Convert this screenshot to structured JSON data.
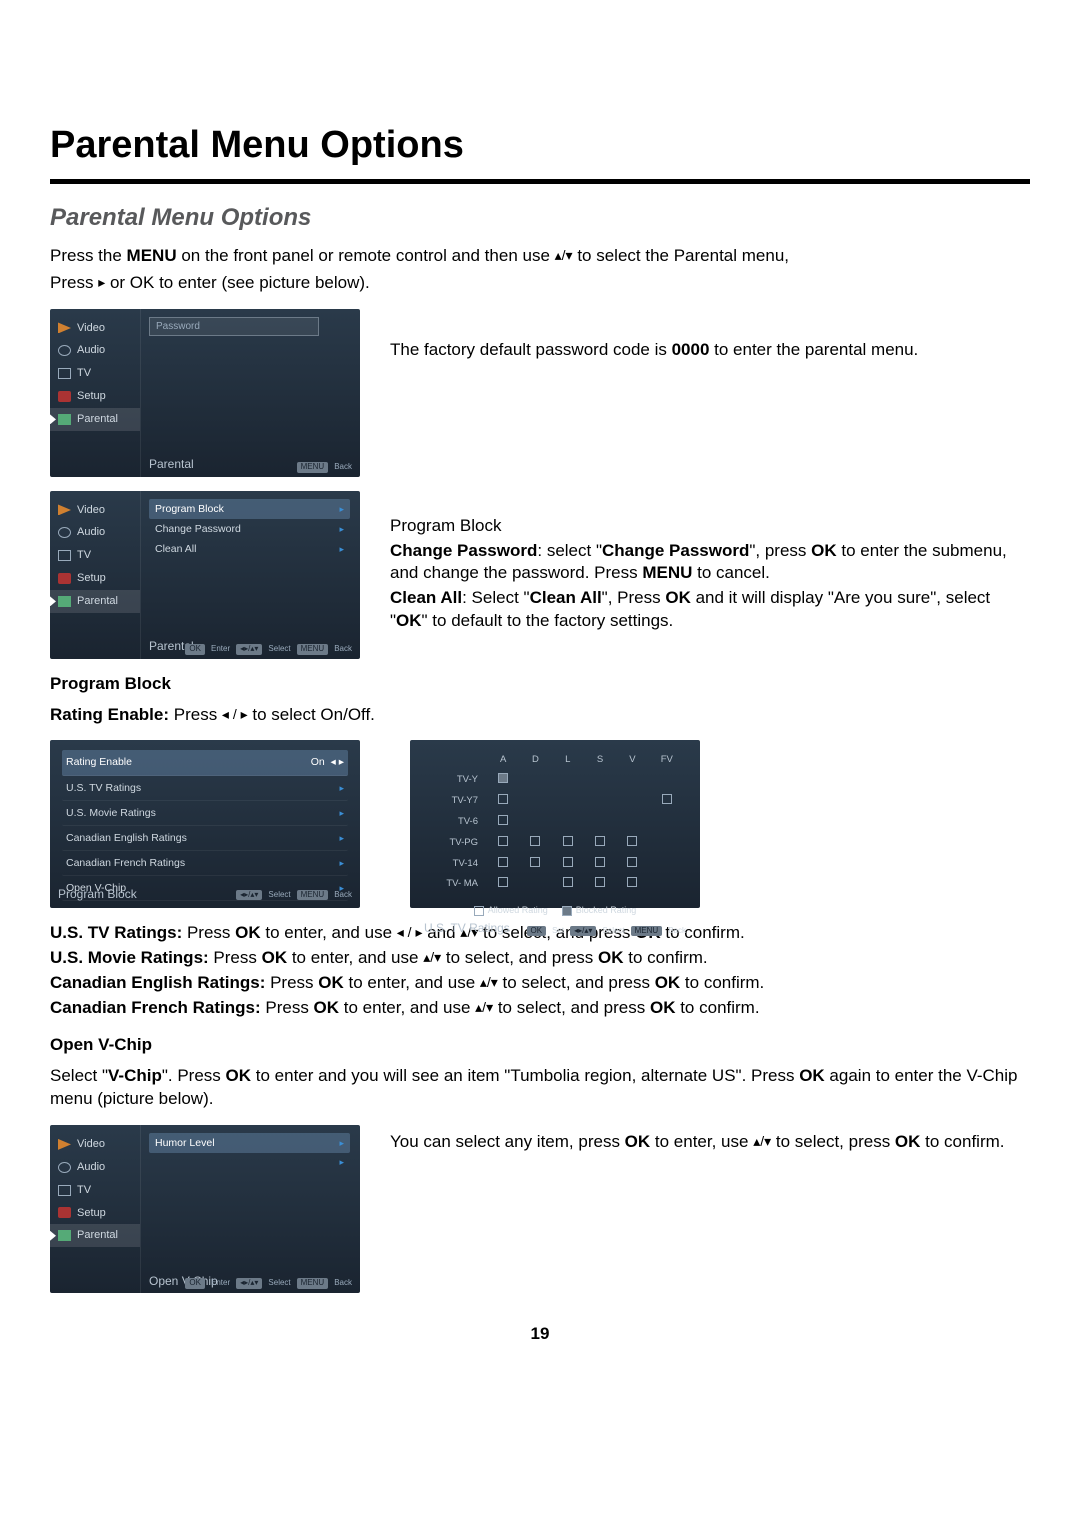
{
  "page": {
    "title": "Parental Menu Options",
    "subtitle": "Parental Menu Options",
    "number": "19"
  },
  "intro": {
    "line1_pre": "Press the ",
    "line1_menu": "MENU",
    "line1_mid": " on the front panel or remote control and then use ",
    "line1_post": " to select the Parental menu,",
    "line2_pre": "Press ",
    "line2_post": " or OK to enter (see picture below)."
  },
  "sidebar_items": [
    {
      "label": "Video",
      "icon": "video"
    },
    {
      "label": "Audio",
      "icon": "audio"
    },
    {
      "label": "TV",
      "icon": "tv"
    },
    {
      "label": "Setup",
      "icon": "setup"
    },
    {
      "label": "Parental",
      "icon": "parental"
    }
  ],
  "osd1": {
    "panel_label": "Parental",
    "password_placeholder": "Password",
    "footer": {
      "menu": "MENU",
      "back": "Back"
    }
  },
  "desc1": {
    "pre": "The factory default password code is ",
    "code": "0000",
    "post": " to enter the parental menu."
  },
  "osd2": {
    "panel_label": "Parental",
    "rows": [
      {
        "label": "Program Block",
        "sel": true
      },
      {
        "label": "Change Password"
      },
      {
        "label": "Clean All"
      }
    ],
    "footer": {
      "ok": "OK",
      "enter": "Enter",
      "nav": "◂▸/▴▾",
      "select": "Select",
      "menu": "MENU",
      "back": "Back"
    }
  },
  "desc2": {
    "h": "Program Block",
    "l1a": "Change Password",
    "l1b": ": select \"",
    "l1c": "Change Password",
    "l1d": "\", press ",
    "l1e": "OK",
    "l1f": " to enter the submenu, and change the password. Press ",
    "l1g": "MENU",
    "l1h": " to cancel.",
    "l2a": "Clean All",
    "l2b": ": Select \"",
    "l2c": "Clean All",
    "l2d": "\", Press ",
    "l2e": "OK",
    "l2f": " and it will display \"Are you sure\", select \"",
    "l2g": "OK",
    "l2h": "\" to default  to the factory settings."
  },
  "program_block_section": {
    "h": "Program Block",
    "re_label": "Rating Enable:",
    "re_instr_pre": " Press ",
    "re_instr_post": " to select On/Off."
  },
  "osd_pb": {
    "panel_label": "Program Block",
    "rows": [
      {
        "label": "Rating Enable",
        "value": "On",
        "sel": true,
        "arrows": true
      },
      {
        "label": "U.S. TV Ratings"
      },
      {
        "label": "U.S. Movie Ratings"
      },
      {
        "label": "Canadian English Ratings"
      },
      {
        "label": "Canadian French Ratings"
      },
      {
        "label": "Open V-Chip"
      }
    ],
    "footer": {
      "nav": "◂▸/▴▾",
      "select": "Select",
      "menu": "MENU",
      "back": "Back"
    }
  },
  "osd_ratings": {
    "panel_label": "U.S. TV Ratings",
    "cols": [
      "A",
      "D",
      "L",
      "S",
      "V",
      "FV"
    ],
    "rows": [
      {
        "label": "TV-Y",
        "cells": [
          "lock",
          "",
          "",
          "",
          "",
          ""
        ]
      },
      {
        "label": "TV-Y7",
        "cells": [
          "open",
          "",
          "",
          "",
          "",
          "open"
        ]
      },
      {
        "label": "TV-6",
        "cells": [
          "open",
          "",
          "",
          "",
          "",
          ""
        ]
      },
      {
        "label": "TV-PG",
        "cells": [
          "open",
          "open",
          "open",
          "open",
          "open",
          ""
        ]
      },
      {
        "label": "TV-14",
        "cells": [
          "open",
          "open",
          "open",
          "open",
          "open",
          ""
        ]
      },
      {
        "label": "TV- MA",
        "cells": [
          "open",
          "",
          "open",
          "open",
          "open",
          ""
        ]
      }
    ],
    "legend_allowed": "Allowed Rating",
    "legend_blocked": "Blocked Rating",
    "footer": {
      "ok": "OK",
      "set": "Set",
      "nav": "◂▸/▴▾",
      "select": "Select",
      "menu": "MENU",
      "back": "Back"
    }
  },
  "ratings_instr": {
    "us_tv_a": "U.S. TV Ratings:",
    "us_tv_b": " Press ",
    "ok": "OK",
    "us_tv_c": " to enter, and use ",
    "us_tv_d": " and ",
    "us_tv_e": " to select, and press ",
    "us_tv_f": " to confirm.",
    "us_mv_a": "U.S. Movie Ratings:",
    "gen_b": " Press ",
    "gen_c": " to enter, and use ",
    "gen_d": " to select, and press ",
    "gen_e": " to confirm.",
    "ce_a": "Canadian English Ratings:",
    "cf_a": "Canadian French Ratings:"
  },
  "vchip": {
    "h": "Open V-Chip",
    "p_a": "Select \"",
    "p_b": "V-Chip",
    "p_c": "\". Press ",
    "p_d": "OK",
    "p_e": " to enter",
    "p_sp": " ",
    "p_f": "and you will see an item \"Tumbolia region, alternate US\". Press ",
    "p_g": "OK",
    "p_h": " again to enter the V-Chip menu (picture below)."
  },
  "osd_vchip": {
    "panel_label": "Open V-Chip",
    "rows": [
      {
        "label": "Humor Level",
        "sel": true
      },
      {
        "label": ""
      }
    ],
    "footer": {
      "ok": "OK",
      "enter": "Enter",
      "nav": "◂▸/▴▾",
      "select": "Select",
      "menu": "MENU",
      "back": "Back"
    }
  },
  "desc_vchip": {
    "a": "You can select any item, press ",
    "b": "OK",
    "c": " to enter, use ",
    "d": " to select, press ",
    "e": "OK",
    "f": " to confirm."
  },
  "arrows": {
    "lr": "◂ / ▸",
    "ud": "▴/▾",
    "r": "▸"
  }
}
